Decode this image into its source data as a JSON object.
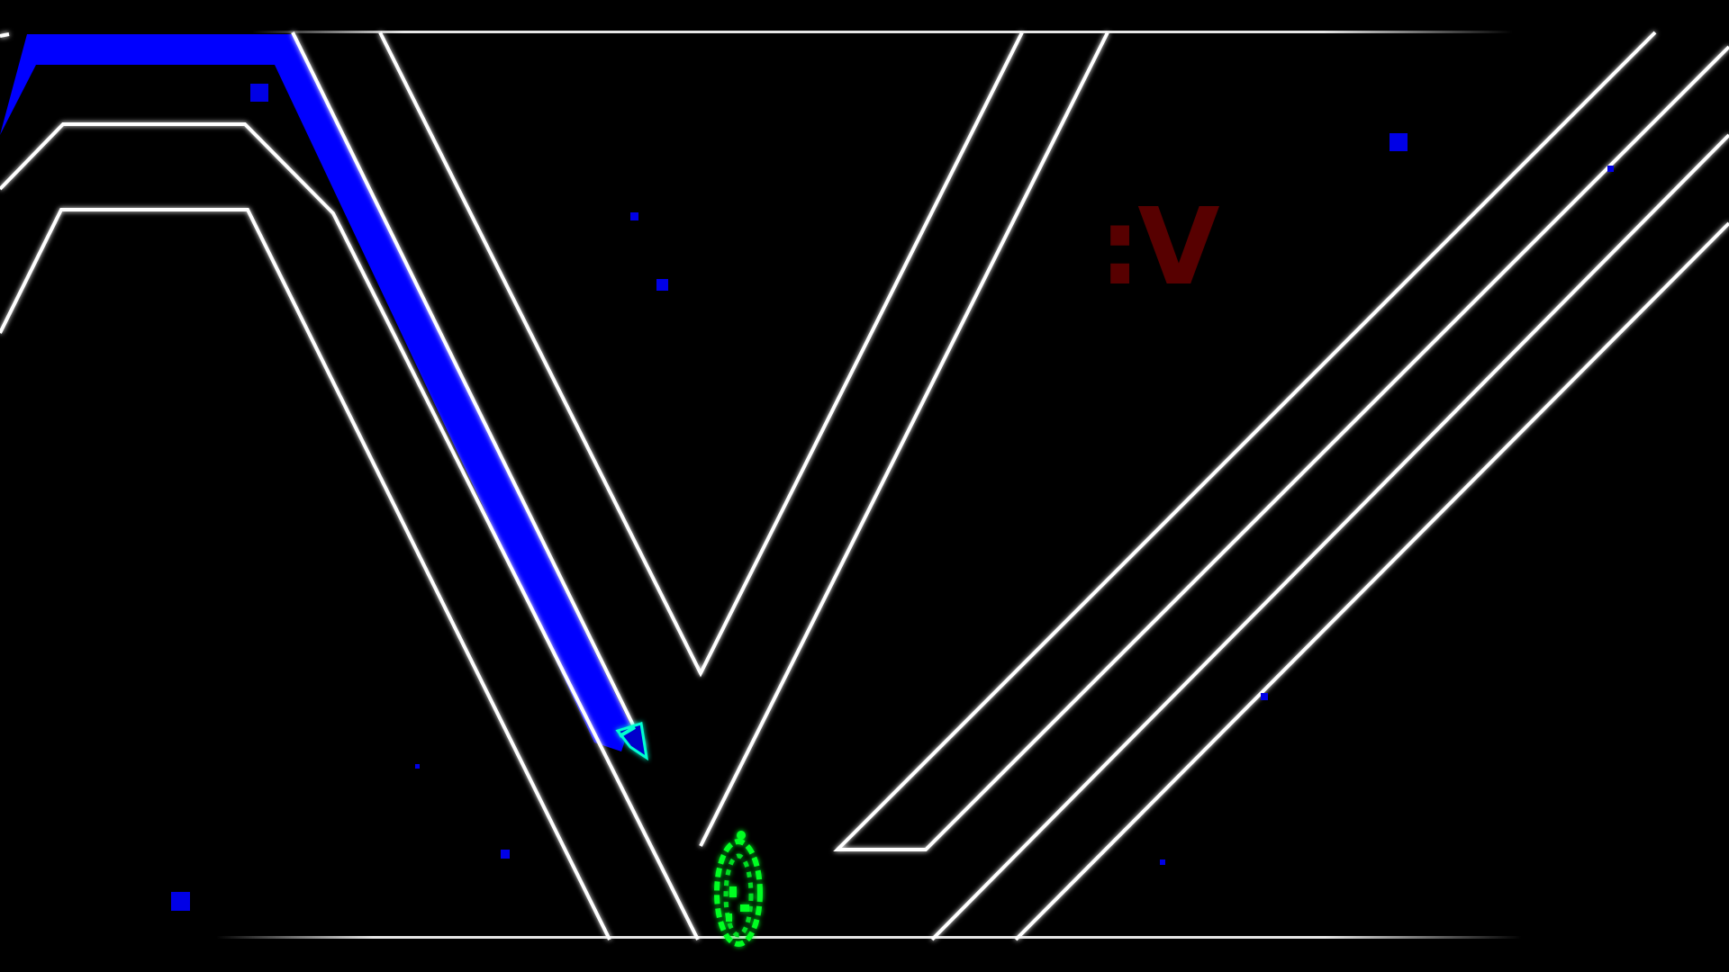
{
  "game": {
    "stage_text": ":V"
  },
  "colors": {
    "background": "#000000",
    "wall": "#ffffff",
    "trail": "#0000ff",
    "particle": "#0000e6",
    "portal": "#00ff22",
    "player": "#00ffd0",
    "stage_text": "#5c0000"
  }
}
